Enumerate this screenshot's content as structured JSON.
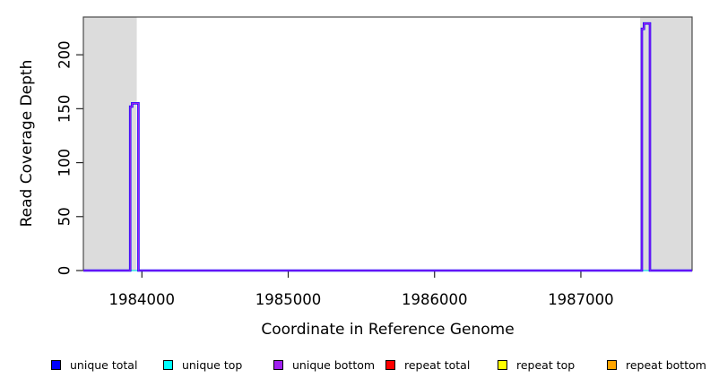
{
  "figure": {
    "background": "#ffffff",
    "plot_border_color": "#4a4a4a",
    "offscale_region_color": "#dcdcdc",
    "baseline_overlay_colors": [
      "#0000ff",
      "#a020f0"
    ]
  },
  "chart_data": {
    "type": "line",
    "title": "",
    "xlabel": "Coordinate in Reference Genome",
    "ylabel": "Read Coverage Depth",
    "xlim": [
      1983600,
      1987760
    ],
    "ylim": [
      0,
      235
    ],
    "x_ticks": [
      1984000,
      1985000,
      1986000,
      1987000
    ],
    "x_tick_labels": [
      "1984000",
      "1985000",
      "1986000",
      "1987000"
    ],
    "y_ticks": [
      0,
      50,
      100,
      150,
      200
    ],
    "y_tick_labels": [
      "0",
      "50",
      "100",
      "150",
      "200"
    ],
    "grid": false,
    "legend_position": "bottom",
    "shaded_regions": [
      {
        "name": "off-scale-left",
        "x0": 1983600,
        "x1": 1983965,
        "color": "#dcdcdc"
      },
      {
        "name": "off-scale-right",
        "x0": 1987405,
        "x1": 1987760,
        "color": "#dcdcdc"
      }
    ],
    "series": [
      {
        "name": "repeat total",
        "color": "#ff0000",
        "width": 1,
        "points": [
          [
            1983600,
            0
          ],
          [
            1987760,
            0
          ]
        ]
      },
      {
        "name": "repeat top",
        "color": "#ffff00",
        "width": 1,
        "points": [
          [
            1983600,
            0
          ],
          [
            1987760,
            0
          ]
        ]
      },
      {
        "name": "repeat bottom",
        "color": "#ffa500",
        "width": 1,
        "points": [
          [
            1983600,
            0
          ],
          [
            1987760,
            0
          ]
        ]
      },
      {
        "name": "unique top",
        "color": "#00ffff",
        "width": 1,
        "points": [
          [
            1983600,
            0
          ],
          [
            1987760,
            0
          ]
        ]
      },
      {
        "name": "unique total",
        "color": "#0000ff",
        "width": 2.6,
        "points": [
          [
            1983600,
            0
          ],
          [
            1983920,
            0
          ],
          [
            1983920,
            152
          ],
          [
            1983933,
            152
          ],
          [
            1983933,
            155
          ],
          [
            1983976,
            155
          ],
          [
            1983976,
            0
          ],
          [
            1987417,
            0
          ],
          [
            1987417,
            224
          ],
          [
            1987431,
            224
          ],
          [
            1987431,
            229
          ],
          [
            1987472,
            229
          ],
          [
            1987472,
            0
          ],
          [
            1987760,
            0
          ]
        ]
      },
      {
        "name": "unique bottom",
        "color": "#a020f0",
        "width": 1.3,
        "points": [
          [
            1983600,
            0
          ],
          [
            1983920,
            0
          ],
          [
            1983920,
            152
          ],
          [
            1983933,
            152
          ],
          [
            1983933,
            155
          ],
          [
            1983976,
            155
          ],
          [
            1983976,
            0
          ],
          [
            1987417,
            0
          ],
          [
            1987417,
            224
          ],
          [
            1987431,
            224
          ],
          [
            1987431,
            229
          ],
          [
            1987472,
            229
          ],
          [
            1987472,
            0
          ],
          [
            1987760,
            0
          ]
        ]
      }
    ]
  },
  "legend": {
    "items": [
      {
        "label": "unique total",
        "color": "#0000ff"
      },
      {
        "label": "unique top",
        "color": "#00ffff"
      },
      {
        "label": "unique bottom",
        "color": "#a020f0"
      },
      {
        "label": "repeat total",
        "color": "#ff0000"
      },
      {
        "label": "repeat top",
        "color": "#ffff00"
      },
      {
        "label": "repeat bottom",
        "color": "#ffa500"
      }
    ]
  }
}
